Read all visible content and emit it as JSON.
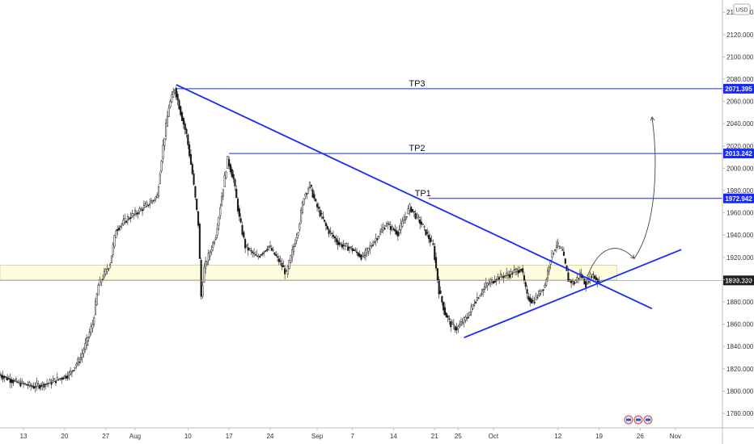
{
  "chart_data": {
    "type": "candlestick",
    "currency": "USD",
    "y_ticks": [
      1780,
      1800,
      1820,
      1840,
      1860,
      1880,
      1900,
      1920,
      1940,
      1960,
      1980,
      2000,
      2020,
      2040,
      2060,
      2080,
      2100,
      2120,
      2140
    ],
    "y_tick_labels": [
      "1780.000",
      "1800.000",
      "1820.000",
      "1840.000",
      "1860.000",
      "1880.000",
      "1900.000",
      "1920.000",
      "1940.000",
      "1960.000",
      "1980.000",
      "2000.000",
      "2020.000",
      "2040.000",
      "2060.000",
      "2080.000",
      "2100.000",
      "2120.000",
      "2140.000"
    ],
    "ylim": [
      1767,
      2151
    ],
    "x_ticks": [
      {
        "label": "13",
        "day": 0
      },
      {
        "label": "20",
        "day": 7
      },
      {
        "label": "27",
        "day": 14
      },
      {
        "label": "Aug",
        "day": 19
      },
      {
        "label": "10",
        "day": 28
      },
      {
        "label": "17",
        "day": 35
      },
      {
        "label": "24",
        "day": 42
      },
      {
        "label": "Sep",
        "day": 50
      },
      {
        "label": "7",
        "day": 56
      },
      {
        "label": "14",
        "day": 63
      },
      {
        "label": "21",
        "day": 70
      },
      {
        "label": "25",
        "day": 74
      },
      {
        "label": "Oct",
        "day": 80
      },
      {
        "label": "12",
        "day": 91
      },
      {
        "label": "19",
        "day": 98
      },
      {
        "label": "26",
        "day": 105
      },
      {
        "label": "Nov",
        "day": 111
      }
    ],
    "xlim": [
      -4,
      119
    ],
    "price_path": [
      [
        -4,
        1815
      ],
      [
        -1,
        1808
      ],
      [
        2,
        1804
      ],
      [
        5,
        1808
      ],
      [
        8,
        1815
      ],
      [
        10,
        1830
      ],
      [
        12,
        1860
      ],
      [
        13,
        1895
      ],
      [
        15,
        1915
      ],
      [
        16,
        1945
      ],
      [
        18,
        1955
      ],
      [
        20,
        1962
      ],
      [
        22,
        1970
      ],
      [
        23,
        1975
      ],
      [
        24,
        2020
      ],
      [
        25,
        2055
      ],
      [
        26,
        2072
      ],
      [
        27,
        2050
      ],
      [
        28,
        2030
      ],
      [
        29,
        1995
      ],
      [
        30,
        1950
      ],
      [
        30.5,
        1885
      ],
      [
        31,
        1910
      ],
      [
        33,
        1940
      ],
      [
        34,
        1975
      ],
      [
        35,
        2008
      ],
      [
        36,
        1990
      ],
      [
        37,
        1955
      ],
      [
        38,
        1930
      ],
      [
        40,
        1920
      ],
      [
        42,
        1930
      ],
      [
        44,
        1915
      ],
      [
        45,
        1905
      ],
      [
        47,
        1945
      ],
      [
        48,
        1975
      ],
      [
        49,
        1985
      ],
      [
        50,
        1968
      ],
      [
        52,
        1945
      ],
      [
        54,
        1932
      ],
      [
        56,
        1928
      ],
      [
        58,
        1920
      ],
      [
        60,
        1935
      ],
      [
        62,
        1950
      ],
      [
        64,
        1942
      ],
      [
        66,
        1965
      ],
      [
        68,
        1950
      ],
      [
        70,
        1930
      ],
      [
        71,
        1890
      ],
      [
        72,
        1870
      ],
      [
        73,
        1860
      ],
      [
        74,
        1856
      ],
      [
        76,
        1868
      ],
      [
        77,
        1880
      ],
      [
        79,
        1895
      ],
      [
        81,
        1902
      ],
      [
        83,
        1905
      ],
      [
        85,
        1910
      ],
      [
        86,
        1885
      ],
      [
        87,
        1880
      ],
      [
        89,
        1895
      ],
      [
        90,
        1920
      ],
      [
        91,
        1932
      ],
      [
        92,
        1925
      ],
      [
        93,
        1900
      ],
      [
        94,
        1897
      ],
      [
        95,
        1905
      ],
      [
        96,
        1896
      ],
      [
        97,
        1905
      ],
      [
        98,
        1899
      ]
    ],
    "support_zone": {
      "day_start": -4,
      "day_end": 101,
      "price_low": 1900,
      "price_high": 1913
    },
    "price_line": {
      "price": 1899.33,
      "label": "1899.330"
    },
    "levels": [
      {
        "name": "TP3",
        "price": 2071.395,
        "label": "2071.395",
        "day_start": 26,
        "label_day": 67
      },
      {
        "name": "TP2",
        "price": 2013.242,
        "label": "2013.242",
        "day_start": 35,
        "label_day": 67
      },
      {
        "name": "TP1",
        "price": 1972.942,
        "label": "1972.942",
        "day_start": 69,
        "label_day": 68
      }
    ],
    "trendlines": [
      {
        "name": "descending-trendline",
        "from": [
          26,
          2075
        ],
        "to": [
          107,
          1874
        ]
      },
      {
        "name": "ascending-trendline",
        "from": [
          75,
          1848
        ],
        "to": [
          112,
          1927
        ]
      }
    ],
    "projection_arrows": [
      {
        "name": "small-hop-arrow",
        "points": [
          [
            96,
            1903
          ],
          [
            98,
            1930
          ],
          [
            101,
            1935
          ],
          [
            104,
            1919
          ]
        ]
      },
      {
        "name": "big-projection-arrow",
        "points": [
          [
            104,
            1919
          ],
          [
            108,
            1950
          ],
          [
            108,
            2010
          ],
          [
            107,
            2046
          ]
        ]
      }
    ],
    "colors": {
      "levels": "#1729ff",
      "trendlines": "#1729ff",
      "zone_fill": "#fffde0",
      "zone_border": "#d8cf8f",
      "price_line": "#9aa0a6",
      "price_badge": "#1c1c1c",
      "candle_up": "#ffffff",
      "candle_down": "#1a1a1a",
      "arrows": "#444444"
    },
    "currency_badge": "USD"
  }
}
